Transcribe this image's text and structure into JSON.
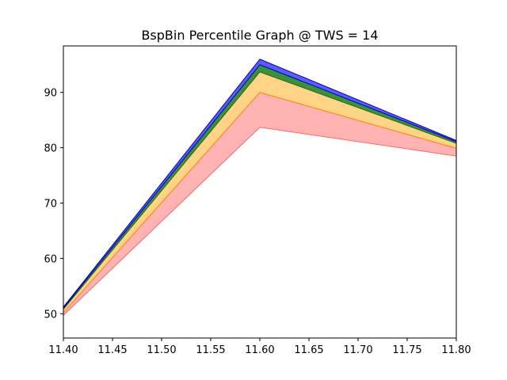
{
  "chart_data": {
    "type": "area",
    "title": "BspBin Percentile Graph @ TWS = 14",
    "xlabel": "",
    "ylabel": "",
    "xlim": [
      11.4,
      11.8
    ],
    "ylim": [
      45.6,
      98.4
    ],
    "x": [
      11.4,
      11.6,
      11.8
    ],
    "x_ticks": [
      11.4,
      11.45,
      11.5,
      11.55,
      11.6,
      11.65,
      11.7,
      11.75,
      11.8
    ],
    "x_tick_labels": [
      "11.40",
      "11.45",
      "11.50",
      "11.55",
      "11.60",
      "11.65",
      "11.70",
      "11.75",
      "11.80"
    ],
    "y_ticks": [
      50,
      60,
      70,
      80,
      90
    ],
    "y_tick_labels": [
      "50",
      "60",
      "70",
      "80",
      "90"
    ],
    "grid": false,
    "bands": [
      {
        "lower": [
          49.7,
          83.7,
          78.5
        ],
        "upper": [
          50.2,
          90.0,
          79.9
        ],
        "fill": "#ff9999",
        "stroke": "#ff6666",
        "alpha": 0.75
      },
      {
        "lower": [
          50.2,
          90.0,
          79.9
        ],
        "upper": [
          50.8,
          93.7,
          80.8
        ],
        "fill": "#ffd27f",
        "stroke": "#ff8c00",
        "alpha": 0.95
      },
      {
        "lower": [
          50.8,
          93.7,
          80.8
        ],
        "upper": [
          51.0,
          95.0,
          81.1
        ],
        "fill": "#2e8b2e",
        "stroke": "#1f6e1f",
        "alpha": 0.95
      },
      {
        "lower": [
          51.0,
          95.0,
          81.1
        ],
        "upper": [
          51.2,
          96.0,
          81.3
        ],
        "fill": "#3333ff",
        "stroke": "#0000cc",
        "alpha": 0.8
      }
    ]
  }
}
